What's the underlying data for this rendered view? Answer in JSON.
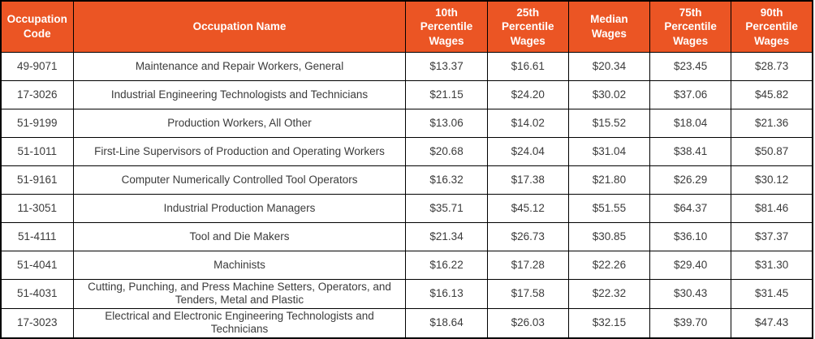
{
  "colors": {
    "header_bg": "#EB5524",
    "header_text": "#FFFFFF",
    "body_text": "#3B3B3B",
    "border": "#000000"
  },
  "table": {
    "columns": [
      "Occupation Code",
      "Occupation Name",
      "10th Percentile Wages",
      "25th Percentile Wages",
      "Median Wages",
      "75th Percentile Wages",
      "90th Percentile Wages"
    ],
    "rows": [
      {
        "code": "49-9071",
        "name": "Maintenance and Repair Workers, General",
        "wages": [
          "$13.37",
          "$16.61",
          "$20.34",
          "$23.45",
          "$28.73"
        ]
      },
      {
        "code": "17-3026",
        "name": "Industrial Engineering Technologists and Technicians",
        "wages": [
          "$21.15",
          "$24.20",
          "$30.02",
          "$37.06",
          "$45.82"
        ]
      },
      {
        "code": "51-9199",
        "name": "Production Workers, All Other",
        "wages": [
          "$13.06",
          "$14.02",
          "$15.52",
          "$18.04",
          "$21.36"
        ]
      },
      {
        "code": "51-1011",
        "name": "First-Line Supervisors of Production and Operating Workers",
        "wages": [
          "$20.68",
          "$24.04",
          "$31.04",
          "$38.41",
          "$50.87"
        ]
      },
      {
        "code": "51-9161",
        "name": "Computer Numerically Controlled Tool Operators",
        "wages": [
          "$16.32",
          "$17.38",
          "$21.80",
          "$26.29",
          "$30.12"
        ]
      },
      {
        "code": "11-3051",
        "name": "Industrial Production Managers",
        "wages": [
          "$35.71",
          "$45.12",
          "$51.55",
          "$64.37",
          "$81.46"
        ]
      },
      {
        "code": "51-4111",
        "name": "Tool and Die Makers",
        "wages": [
          "$21.34",
          "$26.73",
          "$30.85",
          "$36.10",
          "$37.37"
        ]
      },
      {
        "code": "51-4041",
        "name": "Machinists",
        "wages": [
          "$16.22",
          "$17.28",
          "$22.26",
          "$29.40",
          "$31.30"
        ]
      },
      {
        "code": "51-4031",
        "name": "Cutting, Punching, and Press Machine Setters, Operators, and Tenders, Metal and Plastic",
        "wages": [
          "$16.13",
          "$17.58",
          "$22.32",
          "$30.43",
          "$31.45"
        ]
      },
      {
        "code": "17-3023",
        "name": "Electrical and Electronic Engineering Technologists and Technicians",
        "wages": [
          "$18.64",
          "$26.03",
          "$32.15",
          "$39.70",
          "$47.43"
        ]
      }
    ]
  }
}
